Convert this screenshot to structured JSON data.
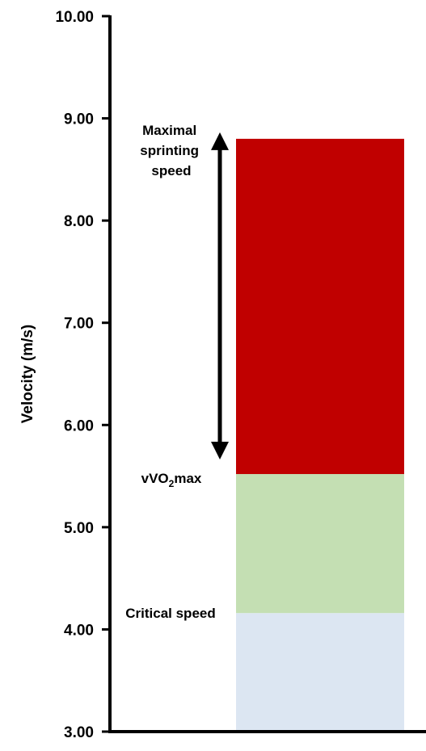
{
  "chart_data": {
    "type": "bar",
    "title": "",
    "xlabel": "",
    "ylabel": "Velocity (m/s)",
    "ylim": [
      3.0,
      10.0
    ],
    "yticks": [
      "3.00",
      "4.00",
      "5.00",
      "6.00",
      "7.00",
      "8.00",
      "9.00",
      "10.00"
    ],
    "ytick_values": [
      3,
      4,
      5,
      6,
      7,
      8,
      9,
      10
    ],
    "grid": false,
    "legend": "none",
    "stacked_segments": [
      {
        "name": "",
        "from": 3.0,
        "to": 4.16,
        "color": "#dce6f2"
      },
      {
        "name": "",
        "from": 4.16,
        "to": 5.52,
        "color": "#c4dfb3"
      },
      {
        "name": "",
        "from": 5.52,
        "to": 8.8,
        "color": "#c00000"
      }
    ],
    "annotations": {
      "max_sprint": {
        "lines": [
          "Maximal",
          "sprinting",
          "speed"
        ],
        "value": 8.8
      },
      "vvo2max": {
        "prefix": "vVO",
        "subscript": "2",
        "suffix": "max",
        "value": 5.52
      },
      "critical_speed": {
        "text": "Critical speed",
        "value": 4.16
      }
    },
    "arrow": {
      "from": 8.8,
      "to": 5.52,
      "style": "double-headed"
    }
  }
}
